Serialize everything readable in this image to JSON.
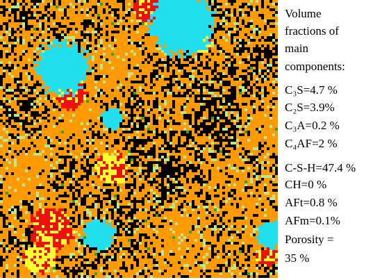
{
  "caption": {
    "lines": [
      "Volume",
      "fractions of",
      "main",
      "components:",
      "C₃S=4.7 %",
      "C₂S=3.9%",
      "C₃A=0.2 %",
      "C₄AF=2 %",
      "C-S-H=47.4 %",
      "CH=0 %",
      "AFt=0.8 %",
      "AFm=0.1%",
      "Porosity =",
      "35 %"
    ]
  }
}
